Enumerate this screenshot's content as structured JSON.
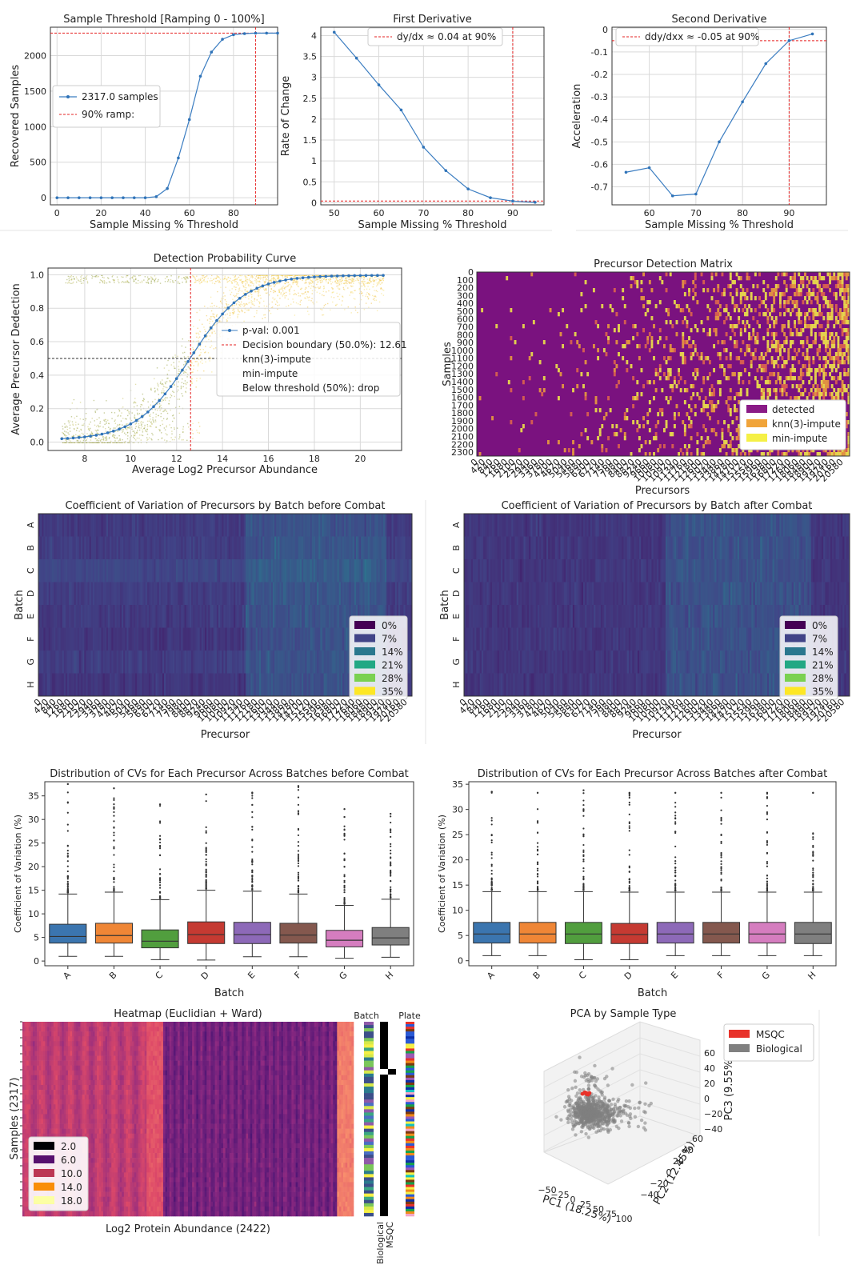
{
  "chart_data": [
    {
      "id": "threshold",
      "type": "line",
      "title": "Sample Threshold [Ramping 0 - 100%]",
      "xlabel": "Sample Missing % Threshold",
      "ylabel": "Recovered Samples",
      "xlim": [
        -3,
        100
      ],
      "ylim": [
        -100,
        2400
      ],
      "xticks": [
        0,
        20,
        40,
        60,
        80
      ],
      "yticks": [
        0,
        500,
        1000,
        1500,
        2000
      ],
      "grid": true,
      "x": [
        0,
        5,
        10,
        15,
        20,
        25,
        30,
        35,
        40,
        45,
        50,
        55,
        60,
        65,
        70,
        75,
        80,
        85,
        90,
        95,
        100
      ],
      "y": [
        0,
        0,
        0,
        0,
        0,
        0,
        0,
        0,
        0,
        15,
        130,
        560,
        1100,
        1710,
        2050,
        2230,
        2295,
        2310,
        2317,
        2317,
        2317
      ],
      "hline": 2317,
      "vline": 90,
      "legend": [
        "2317.0 samples",
        "90% ramp:"
      ],
      "legend_position": "center-left"
    },
    {
      "id": "first-derivative",
      "type": "line",
      "title": "First Derivative",
      "xlabel": "Sample Missing % Threshold",
      "ylabel": "Rate of Change",
      "xlim": [
        47,
        97
      ],
      "ylim": [
        -0.05,
        4.2
      ],
      "xticks": [
        50,
        60,
        70,
        80,
        90
      ],
      "yticks": [
        0.0,
        0.5,
        1.0,
        1.5,
        2.0,
        2.5,
        3.0,
        3.5,
        4.0
      ],
      "grid": true,
      "x": [
        50,
        55,
        60,
        65,
        70,
        75,
        80,
        85,
        90,
        95
      ],
      "y": [
        4.08,
        3.46,
        2.82,
        2.22,
        1.33,
        0.77,
        0.33,
        0.12,
        0.04,
        0.01
      ],
      "hline": 0.04,
      "vline": 90,
      "legend": [
        "dy/dx ≈ 0.04 at 90%"
      ],
      "legend_position": "top-center"
    },
    {
      "id": "second-derivative",
      "type": "line",
      "title": "Second Derivative",
      "xlabel": "Sample Missing % Threshold",
      "ylabel": "Acceleration",
      "xlim": [
        52,
        98
      ],
      "ylim": [
        -0.78,
        0.01
      ],
      "xticks": [
        60,
        70,
        80,
        90
      ],
      "yticks": [
        0.0,
        -0.1,
        -0.2,
        -0.3,
        -0.4,
        -0.5,
        -0.6,
        -0.7
      ],
      "grid": true,
      "x": [
        55,
        60,
        65,
        70,
        75,
        80,
        85,
        90,
        95
      ],
      "y": [
        -0.635,
        -0.615,
        -0.74,
        -0.732,
        -0.5,
        -0.322,
        -0.152,
        -0.05,
        -0.02
      ],
      "hline": -0.05,
      "vline": 90,
      "legend": [
        "ddy/dxx ≈ -0.05 at 90%"
      ],
      "legend_position": "top-center"
    },
    {
      "id": "detection-probability",
      "type": "scatter",
      "title": "Detection Probability Curve",
      "xlabel": "Average Log2 Precursor Abundance",
      "ylabel": "Average Precursor Dedection",
      "xlim": [
        6.4,
        21.8
      ],
      "ylim": [
        -0.05,
        1.04
      ],
      "xticks": [
        8,
        10,
        12,
        14,
        16,
        18,
        20
      ],
      "yticks": [
        0.0,
        0.2,
        0.4,
        0.6,
        0.8,
        1.0
      ],
      "grid": true,
      "curve_x_range": [
        7,
        21
      ],
      "curve_midpoint": 12.61,
      "curve_slope": 0.85,
      "hline": 0.5,
      "vline": 12.61,
      "legend": [
        "p-val: 0.001",
        "Decision boundary (50.0%): 12.61",
        "knn(3)-impute",
        "min-impute",
        "Below threshold (50%): drop"
      ],
      "legend_position": "center-right"
    },
    {
      "id": "precursor-detection-matrix",
      "type": "heatmap",
      "title": "Precursor Detection Matrix",
      "xlabel": "Precursors",
      "ylabel": "Samples",
      "xticks": [
        "0",
        "420",
        "840",
        "1260",
        "1680",
        "2100",
        "2520",
        "2940",
        "3360",
        "3780",
        "4200",
        "4620",
        "5040",
        "5460",
        "5880",
        "6300",
        "6720",
        "7140",
        "7560",
        "7980",
        "8400",
        "8820",
        "9240",
        "9660",
        "10080",
        "10500",
        "10920",
        "11340",
        "11760",
        "12180",
        "12600",
        "13020",
        "13440",
        "13860",
        "14280",
        "14700",
        "15120",
        "15540",
        "15960",
        "16380",
        "16800",
        "17220",
        "17640",
        "18060",
        "18480",
        "18900",
        "19320",
        "19740",
        "20160",
        "20580"
      ],
      "yticks": [
        "0",
        "100",
        "200",
        "300",
        "400",
        "500",
        "600",
        "700",
        "800",
        "900",
        "1000",
        "1100",
        "1200",
        "1300",
        "1400",
        "1500",
        "1600",
        "1700",
        "1800",
        "1900",
        "2000",
        "2100",
        "2200",
        "2300"
      ],
      "legend": [
        "detected",
        "knn(3)-impute",
        "min-impute"
      ],
      "legend_colors": [
        "#8a1b86",
        "#f0a43a",
        "#f5f046"
      ],
      "legend_position": "lower-right"
    },
    {
      "id": "cv-heatmap-before",
      "type": "heatmap",
      "title": "Coefficient of Variation of Precursors by Batch before Combat",
      "xlabel": "Precursor",
      "ylabel": "Batch",
      "rows": [
        "A",
        "B",
        "C",
        "D",
        "E",
        "F",
        "G",
        "H"
      ],
      "xticks": [
        "0",
        "420",
        "840",
        "1260",
        "1680",
        "2100",
        "2520",
        "2940",
        "3360",
        "3780",
        "4200",
        "4620",
        "5040",
        "5460",
        "5880",
        "6300",
        "6720",
        "7140",
        "7560",
        "7980",
        "8400",
        "8820",
        "9240",
        "9660",
        "10080",
        "10500",
        "10920",
        "11340",
        "11760",
        "12180",
        "12600",
        "13020",
        "13440",
        "13860",
        "14280",
        "14700",
        "15120",
        "15540",
        "15960",
        "16380",
        "16800",
        "17220",
        "17640",
        "18060",
        "18480",
        "18900",
        "19320",
        "19740",
        "20160",
        "20580"
      ],
      "legend": [
        "0%",
        "7%",
        "14%",
        "21%",
        "28%",
        "35%"
      ],
      "legend_colors": [
        "#440154",
        "#414487",
        "#2a788e",
        "#22a884",
        "#7ad151",
        "#fde725"
      ],
      "legend_position": "lower-right"
    },
    {
      "id": "cv-heatmap-after",
      "type": "heatmap",
      "title": "Coefficient of Variation of Precursors by Batch after Combat",
      "xlabel": "Precursor",
      "ylabel": "Batch",
      "rows": [
        "A",
        "B",
        "C",
        "D",
        "E",
        "F",
        "G",
        "H"
      ],
      "xticks": [
        "0",
        "420",
        "840",
        "1260",
        "1680",
        "2100",
        "2520",
        "2940",
        "3360",
        "3780",
        "4200",
        "4620",
        "5040",
        "5460",
        "5880",
        "6300",
        "6720",
        "7140",
        "7560",
        "7980",
        "8400",
        "8820",
        "9240",
        "9660",
        "10080",
        "10500",
        "10920",
        "11340",
        "11760",
        "12180",
        "12600",
        "13020",
        "13440",
        "13860",
        "14280",
        "14700",
        "15120",
        "15540",
        "15960",
        "16380",
        "16800",
        "17220",
        "17640",
        "18060",
        "18480",
        "18900",
        "19320",
        "19740",
        "20160",
        "20580"
      ],
      "legend": [
        "0%",
        "7%",
        "14%",
        "21%",
        "28%",
        "35%"
      ],
      "legend_colors": [
        "#440154",
        "#414487",
        "#2a788e",
        "#22a884",
        "#7ad151",
        "#fde725"
      ],
      "legend_position": "lower-right"
    },
    {
      "id": "cv-box-before",
      "type": "box",
      "title": "Distribution of CVs for Each Precursor Across Batches before Combat",
      "xlabel": "Batch",
      "ylabel": "Coefficient of Variation (%)",
      "ylim": [
        -1,
        38
      ],
      "yticks": [
        0,
        5,
        10,
        15,
        20,
        25,
        30,
        35
      ],
      "categories": [
        "A",
        "B",
        "C",
        "D",
        "E",
        "F",
        "G",
        "H"
      ],
      "colors": [
        "#3b75af",
        "#ef8636",
        "#519e3e",
        "#c53a32",
        "#8d69b8",
        "#84584e",
        "#d57dbf",
        "#7f7f7f"
      ],
      "boxes": [
        {
          "min": 1.0,
          "q1": 3.8,
          "median": 5.2,
          "q3": 7.8,
          "max": 14.2,
          "outlier_max": 37.5
        },
        {
          "min": 1.0,
          "q1": 3.8,
          "median": 5.4,
          "q3": 8.0,
          "max": 14.6,
          "outlier_max": 36.6
        },
        {
          "min": 0.3,
          "q1": 2.8,
          "median": 4.2,
          "q3": 6.6,
          "max": 13.0,
          "outlier_max": 33.2
        },
        {
          "min": 0.2,
          "q1": 3.7,
          "median": 5.6,
          "q3": 8.3,
          "max": 15.0,
          "outlier_max": 35.3
        },
        {
          "min": 0.9,
          "q1": 3.7,
          "median": 5.6,
          "q3": 8.2,
          "max": 14.8,
          "outlier_max": 35.7
        },
        {
          "min": 0.9,
          "q1": 3.8,
          "median": 5.5,
          "q3": 8.0,
          "max": 14.2,
          "outlier_max": 37.1
        },
        {
          "min": 0.6,
          "q1": 3.0,
          "median": 4.4,
          "q3": 6.5,
          "max": 11.8,
          "outlier_max": 32.2
        },
        {
          "min": 0.8,
          "q1": 3.4,
          "median": 4.9,
          "q3": 7.1,
          "max": 13.1,
          "outlier_max": 31.2
        }
      ]
    },
    {
      "id": "cv-box-after",
      "type": "box",
      "title": "Distribution of CVs for Each Precursor Across Batches after Combat",
      "xlabel": "Batch",
      "ylabel": "Coefficient of Variation (%)",
      "ylim": [
        -1,
        35.5
      ],
      "yticks": [
        0,
        5,
        10,
        15,
        20,
        25,
        30,
        35
      ],
      "categories": [
        "A",
        "B",
        "C",
        "D",
        "E",
        "F",
        "G",
        "H"
      ],
      "colors": [
        "#3b75af",
        "#ef8636",
        "#519e3e",
        "#c53a32",
        "#8d69b8",
        "#84584e",
        "#d57dbf",
        "#7f7f7f"
      ],
      "boxes": [
        {
          "min": 1.0,
          "q1": 3.5,
          "median": 5.3,
          "q3": 7.6,
          "max": 13.7,
          "outlier_max": 33.5
        },
        {
          "min": 1.0,
          "q1": 3.5,
          "median": 5.3,
          "q3": 7.6,
          "max": 13.7,
          "outlier_max": 33.3
        },
        {
          "min": 0.2,
          "q1": 3.4,
          "median": 5.3,
          "q3": 7.6,
          "max": 13.7,
          "outlier_max": 33.8
        },
        {
          "min": 0.2,
          "q1": 3.4,
          "median": 5.2,
          "q3": 7.4,
          "max": 13.6,
          "outlier_max": 33.3
        },
        {
          "min": 1.0,
          "q1": 3.5,
          "median": 5.3,
          "q3": 7.6,
          "max": 13.6,
          "outlier_max": 33.3
        },
        {
          "min": 1.0,
          "q1": 3.5,
          "median": 5.3,
          "q3": 7.6,
          "max": 13.6,
          "outlier_max": 33.3
        },
        {
          "min": 1.0,
          "q1": 3.5,
          "median": 5.3,
          "q3": 7.6,
          "max": 13.6,
          "outlier_max": 33.3
        },
        {
          "min": 1.0,
          "q1": 3.4,
          "median": 5.3,
          "q3": 7.6,
          "max": 13.6,
          "outlier_max": 33.3
        }
      ]
    },
    {
      "id": "clustered-heatmap",
      "type": "heatmap",
      "title": "Heatmap (Euclidian + Ward)",
      "xlabel": "Log2 Protein Abundance (2422)",
      "ylabel": "Samples (2317)",
      "side_labels": [
        "Batch",
        "Plate"
      ],
      "sample_type_ticks": [
        "Biological",
        "MSQC"
      ],
      "legend": [
        "2.0",
        "6.0",
        "10.0",
        "14.0",
        "18.0"
      ],
      "legend_colors": [
        "#000004",
        "#57106e",
        "#bc3754",
        "#f98e09",
        "#fcffa4"
      ],
      "legend_position": "lower-left"
    },
    {
      "id": "pca-3d",
      "type": "scatter",
      "title": "PCA by Sample Type",
      "xlabel": "PC1 (18.25%)",
      "ylabel": "PC2 (12.45%)",
      "zlabel": "PC3 (9.55%)",
      "xticks": [
        "−50",
        "−25",
        "0",
        "25",
        "50",
        "75",
        "100"
      ],
      "yticks": [
        "−40",
        "−20",
        "0",
        "20",
        "40",
        "60"
      ],
      "zticks": [
        "60",
        "40",
        "20",
        "0",
        "−20",
        "−40"
      ],
      "legend": [
        "MSQC",
        "Biological"
      ],
      "legend_colors": [
        "#e8322a",
        "#808080"
      ],
      "legend_position": "top-right"
    }
  ]
}
